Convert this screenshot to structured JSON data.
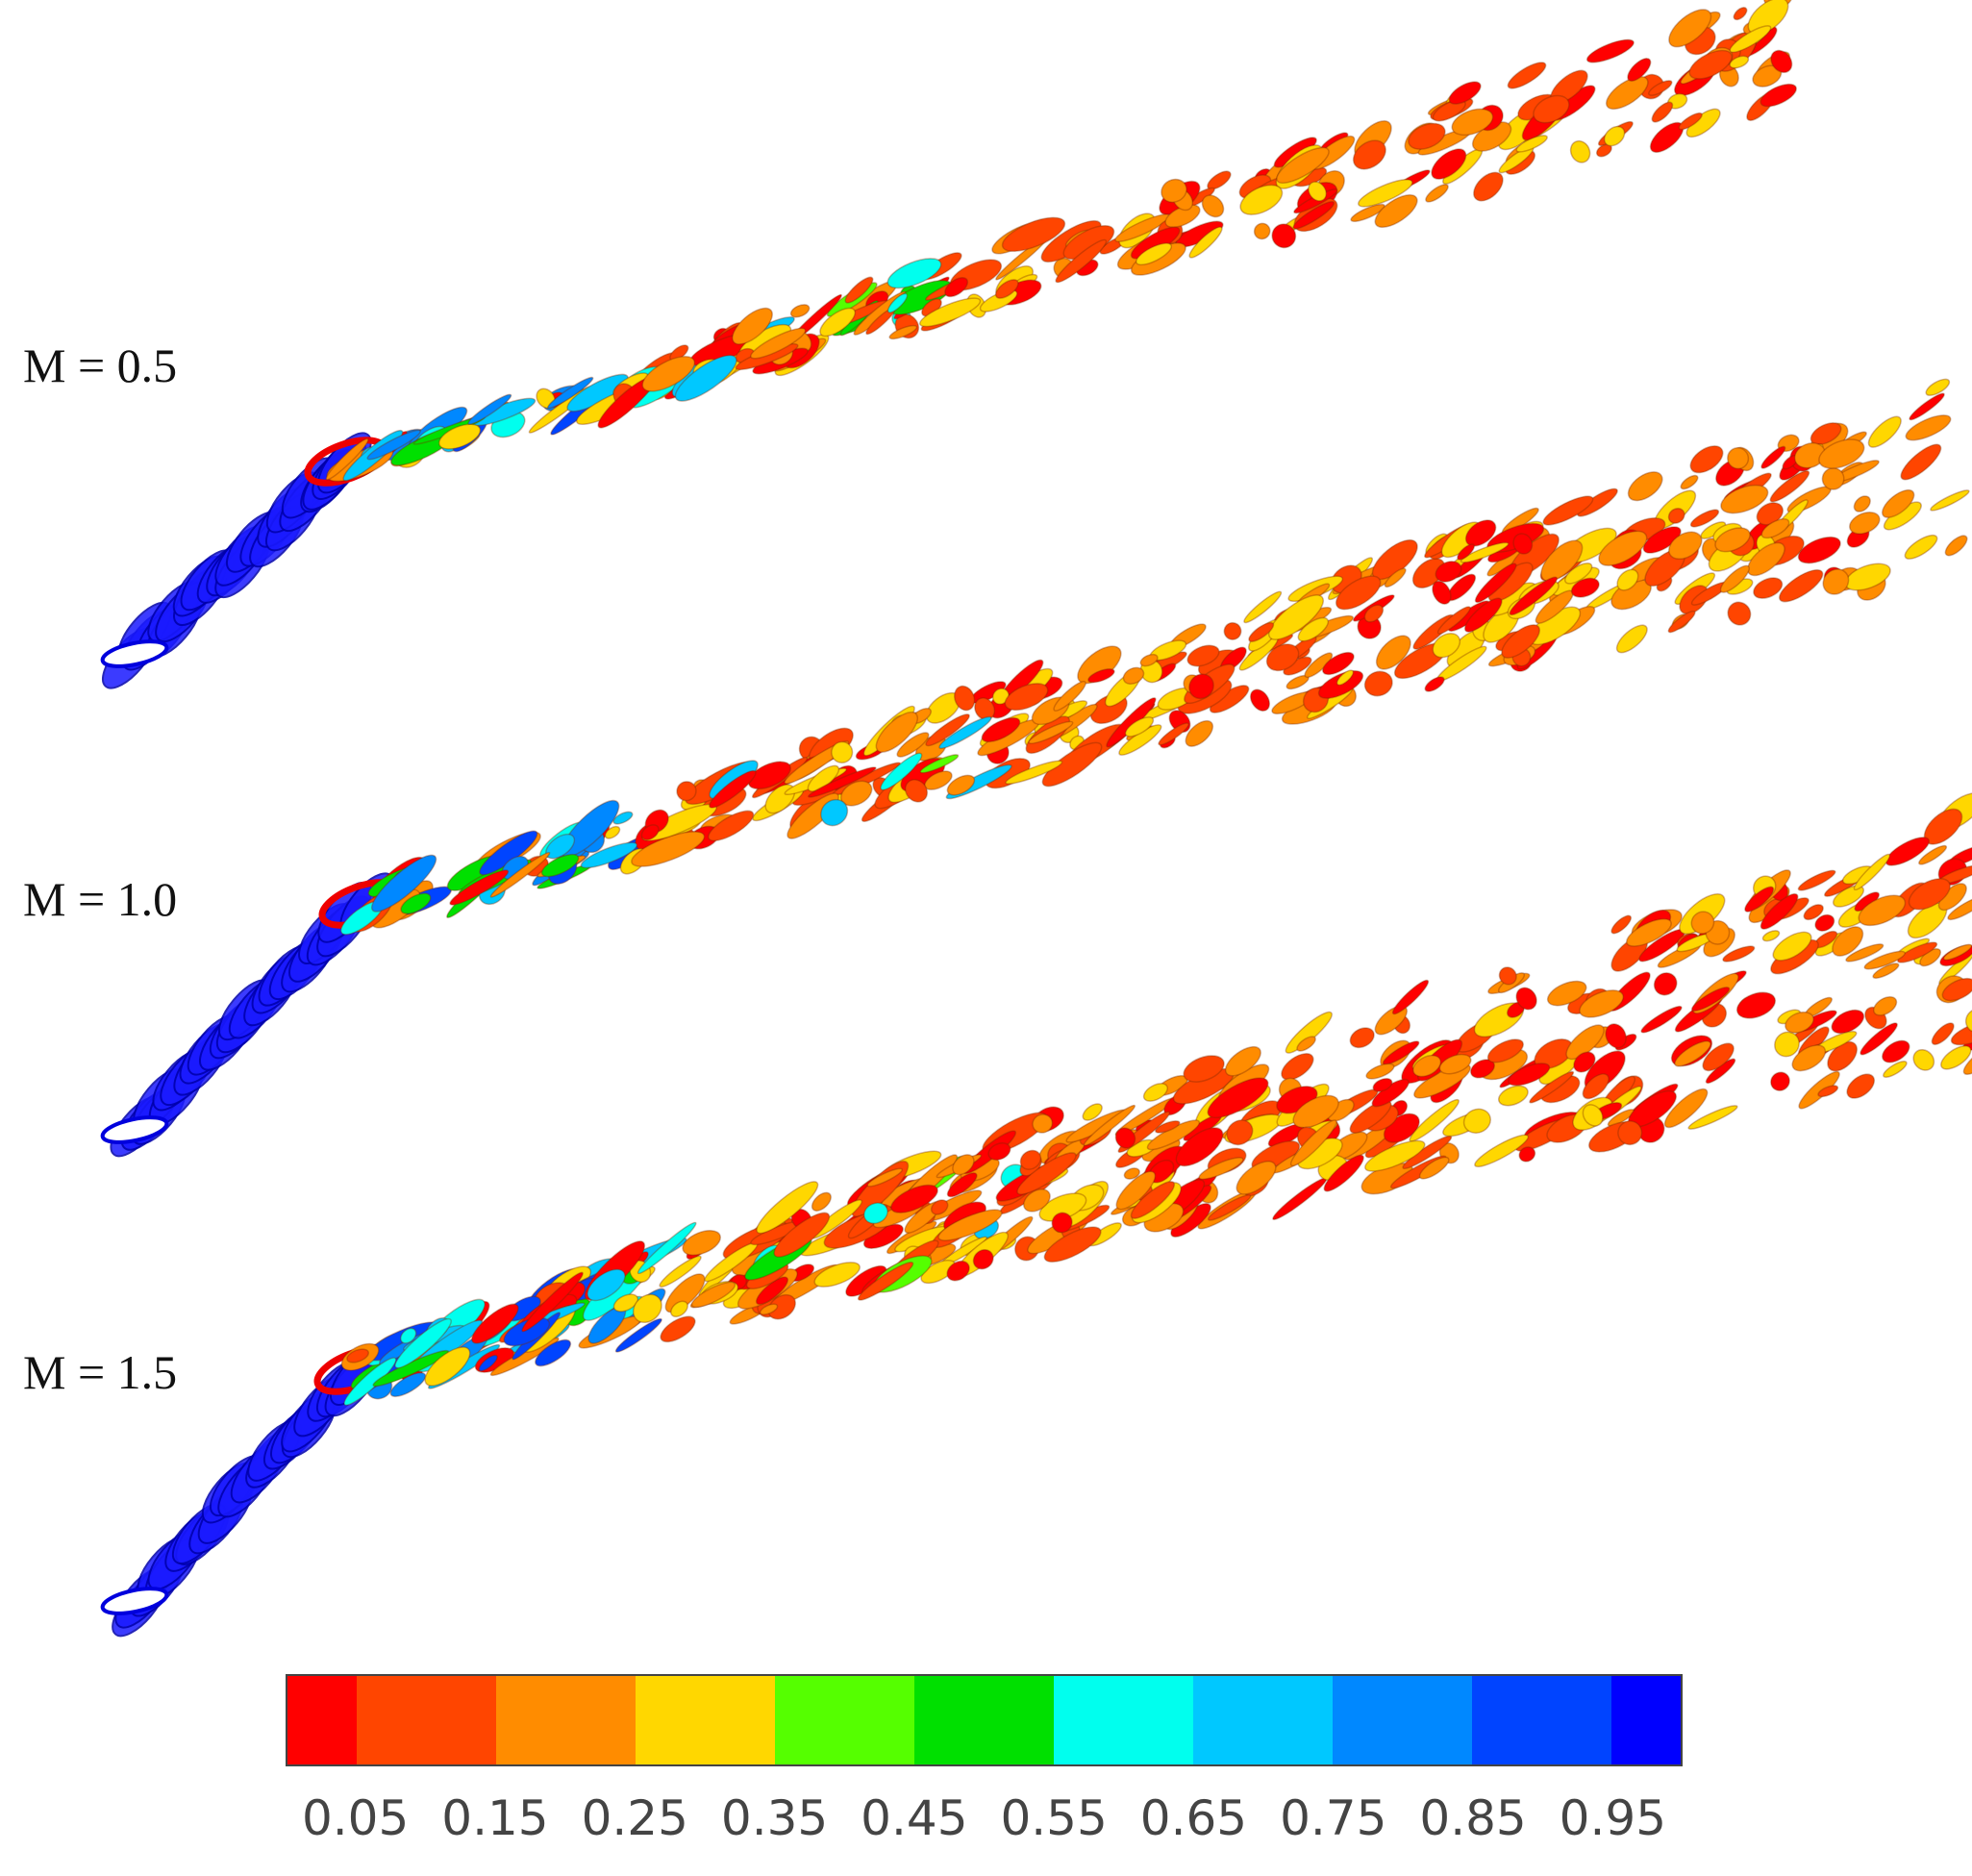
{
  "cases": [
    {
      "label": "M = 0.5",
      "spread": 1.0,
      "reach": 1.0,
      "hot": 0.45
    },
    {
      "label": "M = 1.0",
      "spread": 1.55,
      "reach": 1.05,
      "hot": 0.65
    },
    {
      "label": "M = 1.5",
      "spread": 2.2,
      "reach": 1.1,
      "hot": 0.8
    }
  ],
  "colorbar": {
    "colors": [
      "#ff0000",
      "#ff4500",
      "#ff8c00",
      "#ffd700",
      "#55ff00",
      "#00e000",
      "#00ffee",
      "#00c8ff",
      "#0088ff",
      "#0044ff",
      "#0000ff"
    ],
    "ticks": [
      "0.05",
      "0.15",
      "0.25",
      "0.35",
      "0.45",
      "0.55",
      "0.65",
      "0.75",
      "0.85",
      "0.95"
    ]
  },
  "nozzle_color": "#1a1aff"
}
